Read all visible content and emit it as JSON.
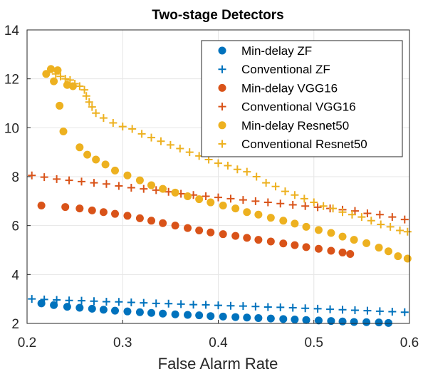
{
  "chart_data": {
    "type": "scatter",
    "title": "Two-stage Detectors",
    "xlabel": "False Alarm Rate",
    "ylabel": "",
    "xlim": [
      0.2,
      0.6
    ],
    "ylim": [
      2,
      14
    ],
    "xticks": [
      0.2,
      0.3,
      0.4,
      0.5,
      0.6
    ],
    "xtick_labels": [
      "0.2",
      "0.3",
      "0.4",
      "0.5",
      "0.6"
    ],
    "yticks": [
      2,
      4,
      6,
      8,
      10,
      12,
      14
    ],
    "ytick_labels": [
      "2",
      "4",
      "6",
      "8",
      "10",
      "12",
      "14"
    ],
    "grid": true,
    "legend_position": "top-right",
    "series": [
      {
        "name": "Min-delay ZF",
        "marker": "dot",
        "color": "#0072BD",
        "x": [
          0.215,
          0.228,
          0.242,
          0.255,
          0.268,
          0.28,
          0.292,
          0.305,
          0.318,
          0.33,
          0.342,
          0.355,
          0.368,
          0.38,
          0.392,
          0.405,
          0.418,
          0.43,
          0.442,
          0.455,
          0.468,
          0.48,
          0.492,
          0.505,
          0.518,
          0.53,
          0.542,
          0.555,
          0.568,
          0.578
        ],
        "y": [
          2.82,
          2.75,
          2.68,
          2.64,
          2.6,
          2.56,
          2.52,
          2.49,
          2.46,
          2.43,
          2.4,
          2.37,
          2.35,
          2.33,
          2.3,
          2.28,
          2.26,
          2.24,
          2.22,
          2.2,
          2.18,
          2.16,
          2.14,
          2.12,
          2.1,
          2.08,
          2.06,
          2.05,
          2.04,
          2.02
        ]
      },
      {
        "name": "Conventional ZF",
        "marker": "plus",
        "color": "#0072BD",
        "x": [
          0.205,
          0.218,
          0.231,
          0.244,
          0.257,
          0.27,
          0.283,
          0.296,
          0.309,
          0.322,
          0.335,
          0.348,
          0.361,
          0.374,
          0.387,
          0.4,
          0.413,
          0.426,
          0.439,
          0.452,
          0.465,
          0.478,
          0.491,
          0.504,
          0.517,
          0.53,
          0.543,
          0.556,
          0.569,
          0.582,
          0.595
        ],
        "y": [
          3.0,
          2.98,
          2.96,
          2.94,
          2.93,
          2.91,
          2.89,
          2.88,
          2.86,
          2.84,
          2.82,
          2.81,
          2.79,
          2.77,
          2.76,
          2.74,
          2.72,
          2.71,
          2.69,
          2.67,
          2.66,
          2.64,
          2.62,
          2.6,
          2.58,
          2.56,
          2.54,
          2.52,
          2.5,
          2.48,
          2.46
        ]
      },
      {
        "name": "Min-delay VGG16",
        "marker": "dot",
        "color": "#D95319",
        "x": [
          0.215,
          0.24,
          0.255,
          0.268,
          0.28,
          0.292,
          0.305,
          0.318,
          0.33,
          0.342,
          0.355,
          0.368,
          0.38,
          0.392,
          0.405,
          0.418,
          0.43,
          0.442,
          0.455,
          0.468,
          0.48,
          0.492,
          0.505,
          0.518,
          0.53,
          0.538
        ],
        "y": [
          6.82,
          6.76,
          6.7,
          6.62,
          6.55,
          6.48,
          6.4,
          6.3,
          6.2,
          6.1,
          6.0,
          5.9,
          5.8,
          5.72,
          5.65,
          5.58,
          5.5,
          5.42,
          5.35,
          5.27,
          5.2,
          5.12,
          5.05,
          4.97,
          4.9,
          4.84
        ]
      },
      {
        "name": "Conventional VGG16",
        "marker": "plus",
        "color": "#D95319",
        "x": [
          0.205,
          0.218,
          0.231,
          0.244,
          0.257,
          0.27,
          0.283,
          0.296,
          0.309,
          0.322,
          0.335,
          0.348,
          0.361,
          0.374,
          0.387,
          0.4,
          0.413,
          0.426,
          0.439,
          0.452,
          0.465,
          0.478,
          0.491,
          0.504,
          0.517,
          0.53,
          0.543,
          0.556,
          0.569,
          0.582,
          0.595
        ],
        "y": [
          8.05,
          7.98,
          7.9,
          7.85,
          7.8,
          7.75,
          7.7,
          7.62,
          7.55,
          7.5,
          7.45,
          7.38,
          7.3,
          7.25,
          7.2,
          7.15,
          7.1,
          7.05,
          7.0,
          6.95,
          6.9,
          6.85,
          6.8,
          6.75,
          6.7,
          6.65,
          6.6,
          6.5,
          6.45,
          6.35,
          6.25
        ]
      },
      {
        "name": "Min-delay Resnet50",
        "marker": "dot",
        "color": "#EDB120",
        "x": [
          0.22,
          0.225,
          0.228,
          0.232,
          0.234,
          0.238,
          0.242,
          0.248,
          0.255,
          0.263,
          0.272,
          0.282,
          0.292,
          0.305,
          0.318,
          0.33,
          0.342,
          0.355,
          0.368,
          0.38,
          0.392,
          0.405,
          0.418,
          0.43,
          0.442,
          0.455,
          0.468,
          0.48,
          0.492,
          0.505,
          0.518,
          0.53,
          0.542,
          0.555,
          0.568,
          0.578,
          0.588,
          0.598
        ],
        "y": [
          12.2,
          12.4,
          11.9,
          12.35,
          10.9,
          9.85,
          11.75,
          11.7,
          9.2,
          8.9,
          8.7,
          8.5,
          8.25,
          8.05,
          7.85,
          7.65,
          7.5,
          7.35,
          7.2,
          7.08,
          6.95,
          6.82,
          6.7,
          6.55,
          6.45,
          6.32,
          6.2,
          6.08,
          5.95,
          5.82,
          5.7,
          5.55,
          5.42,
          5.28,
          5.1,
          4.95,
          4.75,
          4.65
        ]
      },
      {
        "name": "Conventional Resnet50",
        "marker": "plus",
        "color": "#EDB120",
        "x": [
          0.225,
          0.23,
          0.235,
          0.24,
          0.245,
          0.25,
          0.255,
          0.26,
          0.262,
          0.265,
          0.268,
          0.272,
          0.28,
          0.29,
          0.3,
          0.31,
          0.32,
          0.33,
          0.34,
          0.35,
          0.36,
          0.37,
          0.38,
          0.39,
          0.4,
          0.41,
          0.42,
          0.43,
          0.44,
          0.45,
          0.46,
          0.47,
          0.48,
          0.49,
          0.5,
          0.51,
          0.52,
          0.53,
          0.54,
          0.55,
          0.56,
          0.57,
          0.58,
          0.59,
          0.598
        ],
        "y": [
          12.4,
          12.2,
          12.1,
          12.0,
          11.95,
          11.8,
          11.7,
          11.55,
          11.3,
          11.05,
          10.85,
          10.6,
          10.4,
          10.2,
          10.05,
          9.95,
          9.75,
          9.6,
          9.45,
          9.3,
          9.15,
          9.0,
          8.85,
          8.7,
          8.55,
          8.45,
          8.3,
          8.2,
          8.0,
          7.75,
          7.6,
          7.4,
          7.25,
          7.1,
          6.95,
          6.8,
          6.7,
          6.55,
          6.45,
          6.35,
          6.2,
          6.05,
          5.95,
          5.8,
          5.75
        ]
      }
    ]
  }
}
